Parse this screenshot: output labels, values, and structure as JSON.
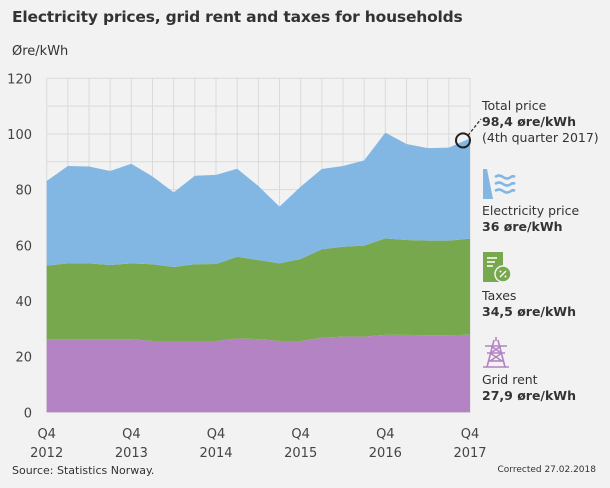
{
  "title": "Electricity prices, grid rent and taxes for households",
  "source": "Source: Statistics Norway.",
  "corrected": "Corrected 27.02.2018",
  "legend": {
    "total": {
      "label": "Total price",
      "value": "98,4 øre/kWh",
      "note": "(4th quarter 2017)"
    },
    "electricity": {
      "label": "Electricity price",
      "value": "36 øre/kWh",
      "icon": "hydropower-dam-icon"
    },
    "taxes": {
      "label": "Taxes",
      "value": "34,5 øre/kWh",
      "icon": "tax-document-icon"
    },
    "grid": {
      "label": "Grid rent",
      "value": "27,9 øre/kWh",
      "icon": "power-pylon-icon"
    }
  },
  "chart_data": {
    "type": "area",
    "stacked": true,
    "title": "Electricity prices, grid rent and taxes for households",
    "ylabel": "Øre/kWh",
    "ylim": [
      0,
      120
    ],
    "yticks": [
      0,
      20,
      40,
      60,
      80,
      100,
      120
    ],
    "grid": true,
    "x": [
      "Q4 2012",
      "Q1 2013",
      "Q2 2013",
      "Q3 2013",
      "Q4 2013",
      "Q1 2014",
      "Q2 2014",
      "Q3 2014",
      "Q4 2014",
      "Q1 2015",
      "Q2 2015",
      "Q3 2015",
      "Q4 2015",
      "Q1 2016",
      "Q2 2016",
      "Q3 2016",
      "Q4 2016",
      "Q1 2017",
      "Q2 2017",
      "Q3 2017",
      "Q4 2017"
    ],
    "xtick_labels": [
      [
        "Q4",
        "2012"
      ],
      [
        "Q4",
        "2013"
      ],
      [
        "Q4",
        "2014"
      ],
      [
        "Q4",
        "2015"
      ],
      [
        "Q4",
        "2016"
      ],
      [
        "Q4",
        "2017"
      ]
    ],
    "series": [
      {
        "name": "Grid rent",
        "color": "#b383c3",
        "values": [
          26.3,
          26.3,
          26.3,
          26.3,
          26.3,
          25.6,
          25.6,
          25.6,
          25.6,
          26.5,
          26.3,
          25.6,
          25.6,
          26.8,
          27.2,
          27.2,
          27.8,
          27.8,
          27.7,
          27.7,
          27.9
        ]
      },
      {
        "name": "Taxes",
        "color": "#78a84d",
        "values": [
          26.4,
          27.2,
          27.2,
          26.6,
          27.2,
          27.6,
          26.6,
          27.6,
          27.7,
          29.4,
          28.4,
          27.9,
          29.5,
          31.8,
          32.3,
          32.7,
          34.7,
          34.1,
          34.0,
          34.0,
          34.5
        ]
      },
      {
        "name": "Electricity price",
        "color": "#83b7e3",
        "values": [
          30.4,
          35.0,
          34.8,
          33.8,
          35.8,
          31.5,
          26.8,
          31.8,
          32.0,
          31.6,
          26.6,
          20.4,
          26.0,
          28.8,
          29.0,
          30.6,
          38.0,
          34.5,
          33.2,
          33.4,
          36.0
        ]
      }
    ],
    "annotation": {
      "label": "Total price",
      "x": "Q4 2017",
      "y": 98.4
    }
  }
}
